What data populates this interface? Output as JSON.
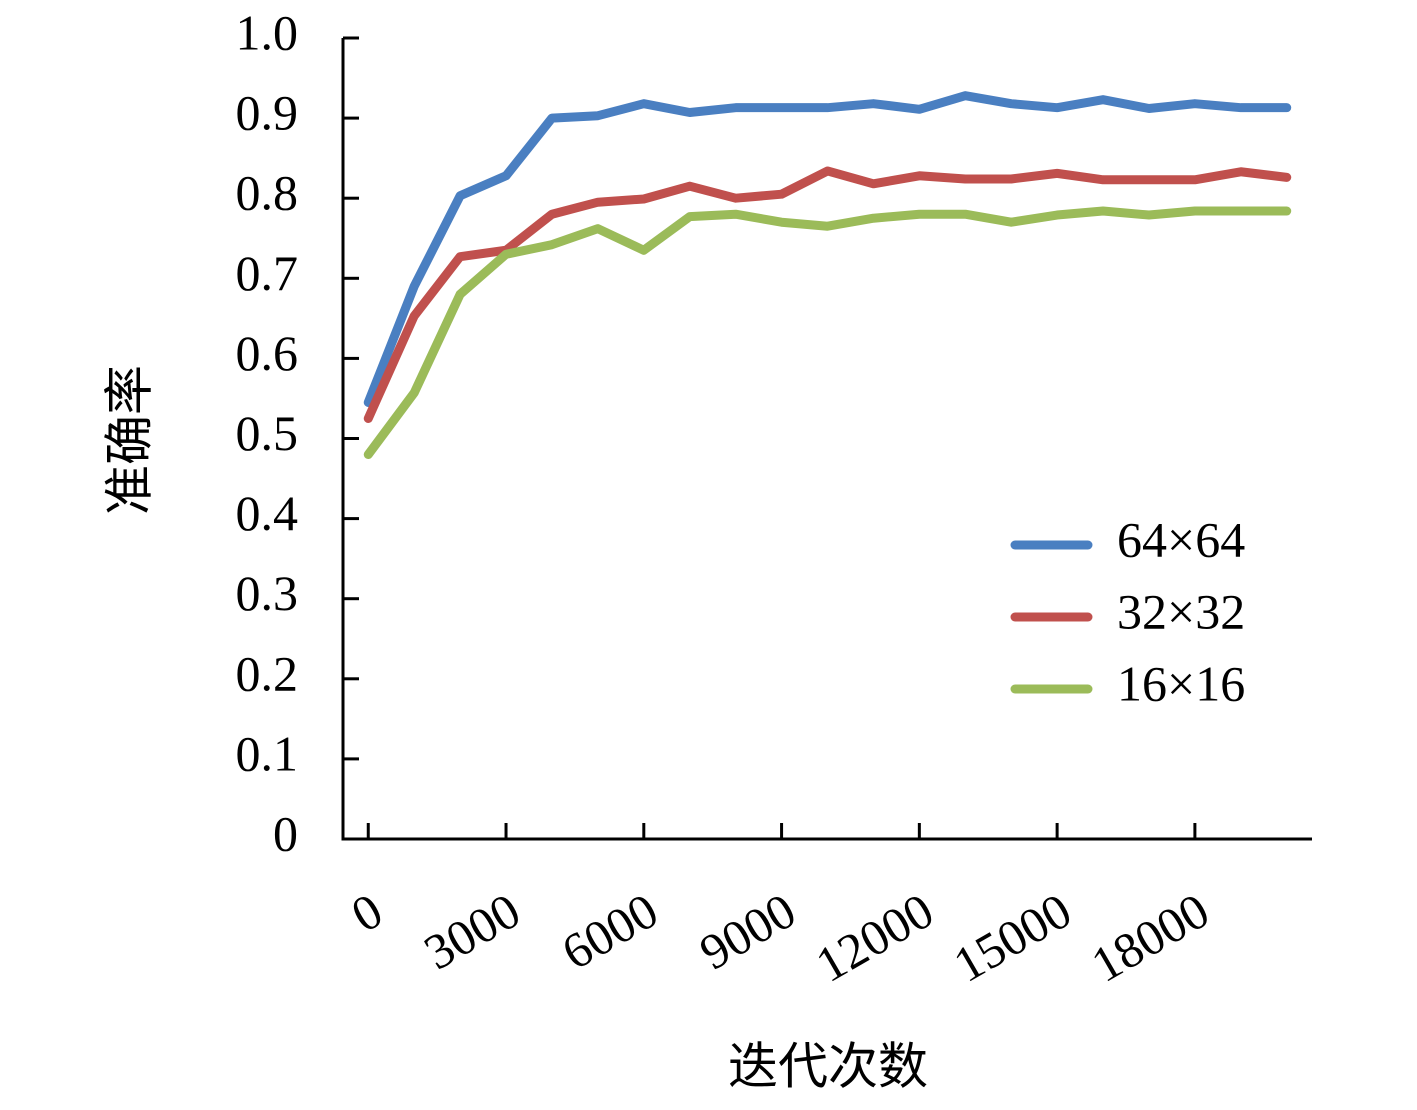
{
  "chart_data": {
    "type": "line",
    "x_label": "迭代次数",
    "y_label": "准确率",
    "x": [
      0,
      1000,
      2000,
      3000,
      4000,
      5000,
      6000,
      7000,
      8000,
      9000,
      10000,
      11000,
      12000,
      13000,
      14000,
      15000,
      16000,
      17000,
      18000,
      19000,
      20000
    ],
    "series": [
      {
        "name": "64×64",
        "color": "#4a7fc1",
        "values": [
          0.545,
          0.69,
          0.803,
          0.828,
          0.9,
          0.903,
          0.918,
          0.907,
          0.913,
          0.913,
          0.913,
          0.918,
          0.911,
          0.928,
          0.918,
          0.913,
          0.923,
          0.912,
          0.918,
          0.913,
          0.913
        ]
      },
      {
        "name": "32×32",
        "color": "#c0504d",
        "values": [
          0.525,
          0.653,
          0.727,
          0.735,
          0.78,
          0.795,
          0.799,
          0.815,
          0.8,
          0.805,
          0.834,
          0.818,
          0.828,
          0.824,
          0.824,
          0.831,
          0.823,
          0.823,
          0.823,
          0.833,
          0.826
        ]
      },
      {
        "name": "16×16",
        "color": "#9bbb59",
        "values": [
          0.48,
          0.557,
          0.68,
          0.73,
          0.742,
          0.762,
          0.735,
          0.777,
          0.78,
          0.77,
          0.765,
          0.775,
          0.78,
          0.78,
          0.77,
          0.779,
          0.784,
          0.779,
          0.784,
          0.784,
          0.784
        ]
      }
    ],
    "xlim": [
      -550,
      20550
    ],
    "xticks": [
      0,
      3000,
      6000,
      9000,
      12000,
      15000,
      18000
    ],
    "ylim": [
      0,
      1
    ],
    "yticks": [
      0,
      0.1,
      0.2,
      0.3,
      0.4,
      0.5,
      0.6,
      0.7,
      0.8,
      0.9,
      {
        "value": 1,
        "label": "1.0"
      }
    ],
    "grid": false,
    "legend": "right"
  }
}
